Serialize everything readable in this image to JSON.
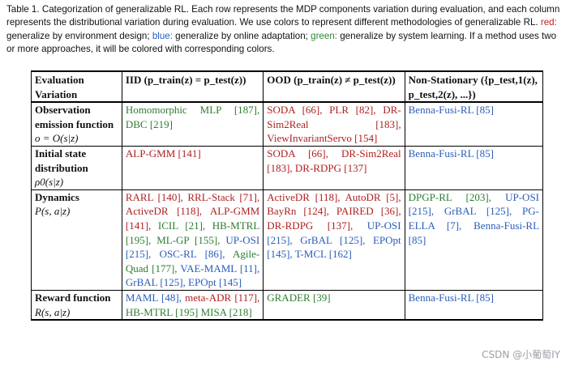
{
  "caption": {
    "text_before": "Table 1.  Categorization of generalizable RL. Each row represents the MDP components variation during evaluation, and each column represents the distributional variation during evaluation. We use colors to represent different methodologies of generalizable RL. ",
    "red_word": "red:",
    "text_red": " generalize by environment design; ",
    "blue_word": "blue:",
    "text_blue": " generalize by online adaptation; ",
    "green_word": "green:",
    "text_green": " generalize by system learning. If a method uses two or more approaches, it will be colored with corresponding colors."
  },
  "colors": {
    "red": "#b02020",
    "blue": "#2a5cb8",
    "green": "#2e7d32"
  },
  "table": {
    "headers": [
      "Evaluation Variation",
      "IID (p_train(z) = p_test(z))",
      "OOD (p_train(z) ≠ p_test(z))",
      "Non-Stationary ({p_test,1(z), p_test,2(z), ...})"
    ],
    "rows": [
      {
        "label": "Observation emission function",
        "math": "o = O(s|z)",
        "iid": [
          {
            "text": "Homomorphic MLP [187],",
            "color": "green"
          },
          {
            "text": "DBC [219]",
            "color": "green"
          }
        ],
        "ood": [
          {
            "text": "SODA [66],",
            "color": "red"
          },
          {
            "text": "PLR [82],",
            "color": "red"
          },
          {
            "text": "DR-Sim2Real [183],",
            "color": "red"
          },
          {
            "text": "ViewInvariantServo [154]",
            "color": "red"
          }
        ],
        "ns": [
          {
            "text": "Benna-Fusi-RL [85]",
            "color": "blue"
          }
        ]
      },
      {
        "label": "Initial state distribution",
        "math": "ρ0(s|z)",
        "iid": [
          {
            "text": "ALP-GMM [141]",
            "color": "red"
          }
        ],
        "ood": [
          {
            "text": "SODA [66],",
            "color": "red"
          },
          {
            "text": "DR-Sim2Real [183],",
            "color": "red"
          },
          {
            "text": "DR-RDPG [137]",
            "color": "red"
          }
        ],
        "ns": [
          {
            "text": "Benna-Fusi-RL [85]",
            "color": "blue"
          }
        ]
      },
      {
        "label": "Dynamics",
        "math": "P(s, a|z)",
        "iid": [
          {
            "text": "RARL [140],",
            "color": "red"
          },
          {
            "text": "RRL-Stack [71],",
            "color": "red"
          },
          {
            "text": "ActiveDR [118],",
            "color": "red"
          },
          {
            "text": "ALP-GMM [141],",
            "color": "red"
          },
          {
            "text": "ICIL [21],",
            "color": "green"
          },
          {
            "text": "HB-MTRL [195],",
            "color": "green"
          },
          {
            "text": "ML-GP [155],",
            "color": "green"
          },
          {
            "text": "UP-OSI [215],",
            "color": "blue"
          },
          {
            "text": "OSC-RL [86],",
            "color": "blue"
          },
          {
            "text": "Agile-Quad [177],",
            "color": "green"
          },
          {
            "text": "VAE-MAML [11],",
            "color": "blue"
          },
          {
            "text": "GrBAL [125],",
            "color": "blue"
          },
          {
            "text": "EPOpt [145]",
            "color": "blue"
          }
        ],
        "ood": [
          {
            "text": "ActiveDR [118],",
            "color": "red"
          },
          {
            "text": "AutoDR [5],",
            "color": "red"
          },
          {
            "text": "BayRn [124],",
            "color": "red"
          },
          {
            "text": "PAIRED [36],",
            "color": "red"
          },
          {
            "text": "DR-RDPG [137],",
            "color": "red"
          },
          {
            "text": "UP-OSI [215],",
            "color": "blue"
          },
          {
            "text": "GrBAL [125],",
            "color": "blue"
          },
          {
            "text": "EPOpt [145],",
            "color": "blue"
          },
          {
            "text": "T-MCL [162]",
            "color": "blue"
          }
        ],
        "ns": [
          {
            "text": "DPGP-RL [203],",
            "color": "green"
          },
          {
            "text": "UP-OSI [215],",
            "color": "blue"
          },
          {
            "text": "GrBAL [125],",
            "color": "blue"
          },
          {
            "text": "PG-ELLA [7],",
            "color": "blue"
          },
          {
            "text": "Benna-Fusi-RL [85]",
            "color": "blue"
          }
        ]
      },
      {
        "label": "Reward function",
        "math": "R(s, a|z)",
        "iid": [
          {
            "text": "MAML [48],",
            "color": "blue"
          },
          {
            "text": "meta-ADR [117],",
            "color": "red"
          },
          {
            "text": "HB-MTRL [195]",
            "color": "green"
          },
          {
            "text": "MISA [218]",
            "color": "green"
          }
        ],
        "ood": [
          {
            "text": "GRADER [39]",
            "color": "green"
          }
        ],
        "ns": [
          {
            "text": "Benna-Fusi-RL [85]",
            "color": "blue"
          }
        ]
      }
    ]
  },
  "watermark": "CSDN @小葡萄IY"
}
